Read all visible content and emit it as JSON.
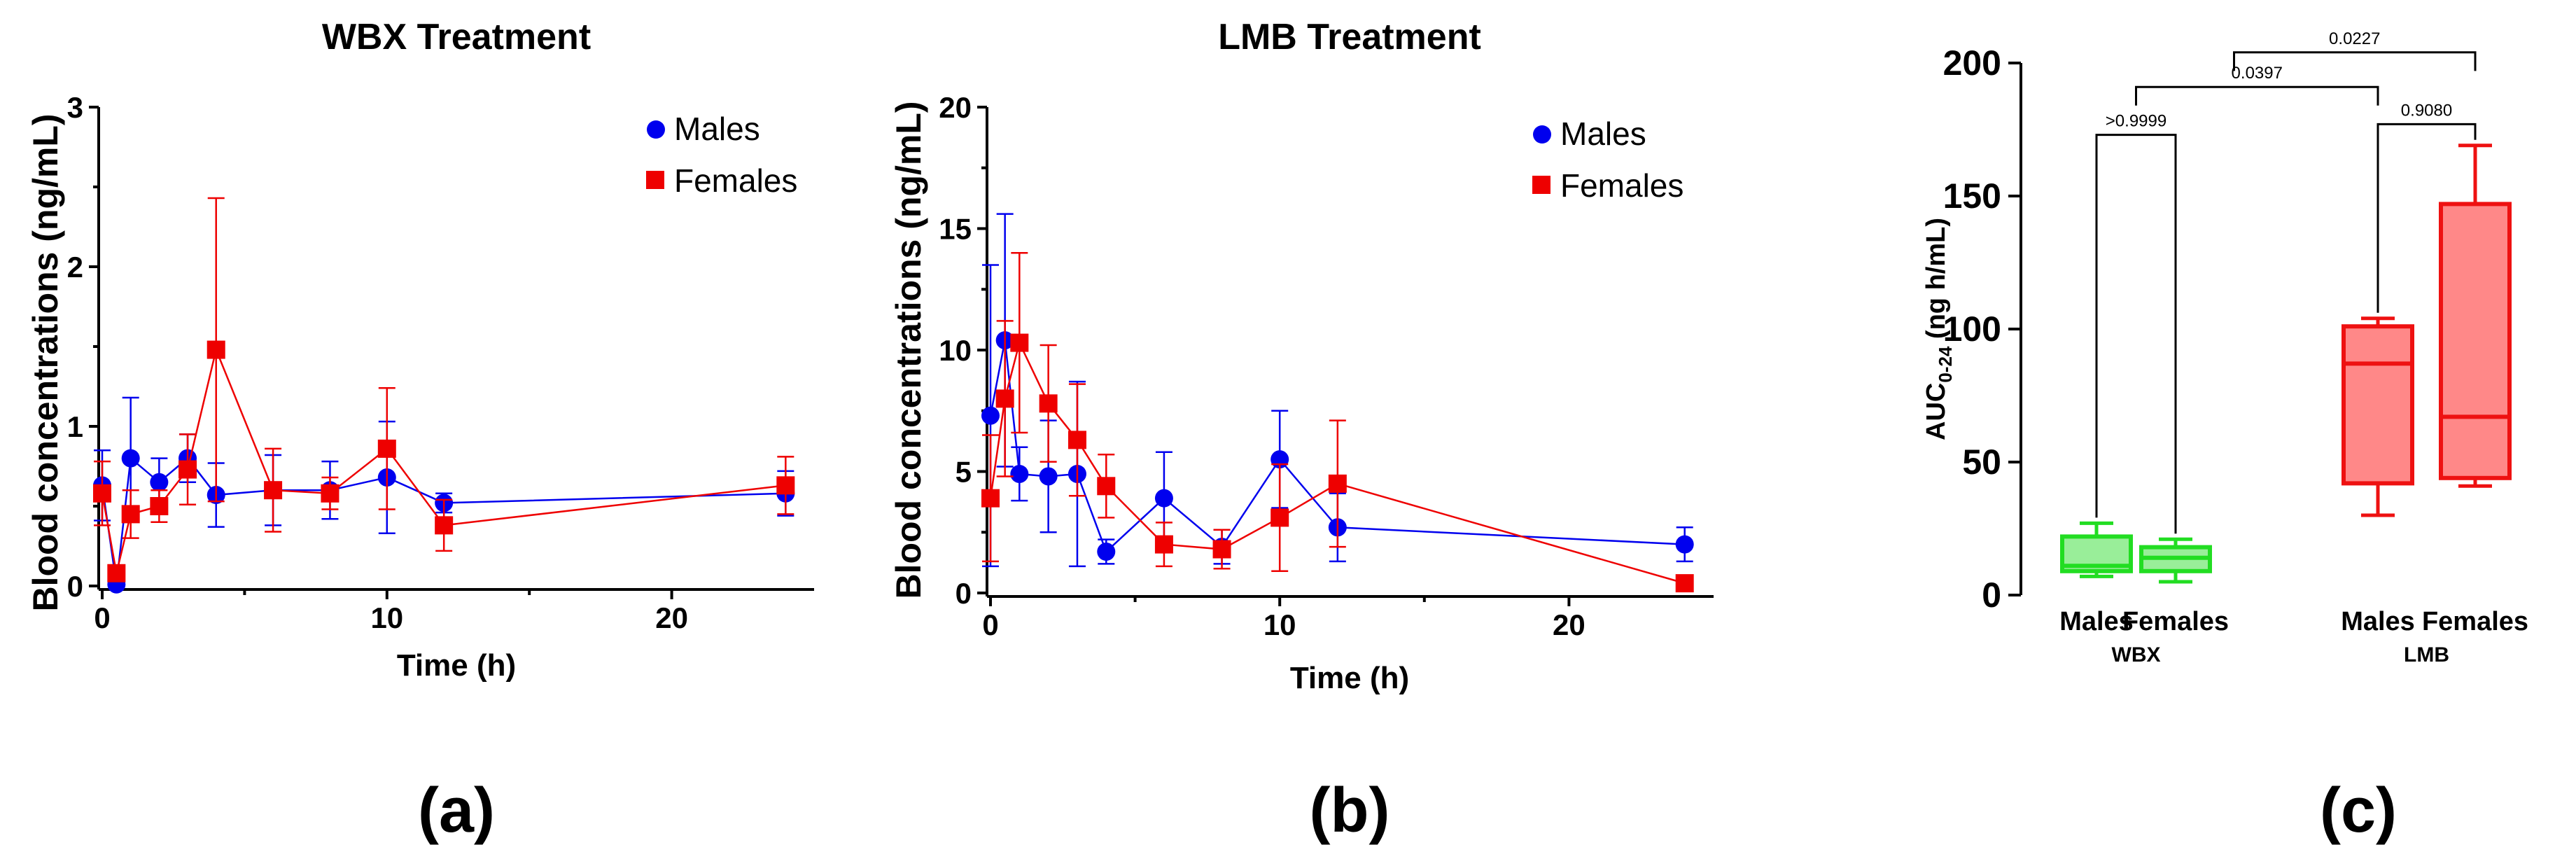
{
  "chart_data": [
    {
      "type": "line",
      "panel_label": "(a)",
      "title": "WBX Treatment",
      "xlabel": "Time (h)",
      "ylabel": "Blood concentrations (ng/mL)",
      "xlim": [
        0,
        25
      ],
      "ylim": [
        0,
        3
      ],
      "xticks": [
        0,
        10,
        20
      ],
      "yticks": [
        0,
        1,
        2,
        3
      ],
      "xtick_labels": [
        "0",
        "10",
        "20"
      ],
      "ytick_labels": [
        "0",
        "1",
        "2",
        "3"
      ],
      "legend_position": "top-right",
      "series": [
        {
          "name": "Males",
          "color": "#0000ee",
          "marker": "circle",
          "x": [
            0,
            0.5,
            1,
            2,
            3,
            4,
            6,
            8,
            10,
            12,
            24
          ],
          "y": [
            0.63,
            0.01,
            0.8,
            0.65,
            0.8,
            0.57,
            0.6,
            0.6,
            0.68,
            0.52,
            0.58
          ],
          "err": [
            0.22,
            0.03,
            0.38,
            0.15,
            0.15,
            0.2,
            0.22,
            0.18,
            0.35,
            0.06,
            0.14
          ]
        },
        {
          "name": "Females",
          "color": "#ee0000",
          "marker": "square",
          "x": [
            0,
            0.5,
            1,
            2,
            3,
            4,
            6,
            8,
            10,
            12,
            24
          ],
          "y": [
            0.58,
            0.08,
            0.45,
            0.5,
            0.73,
            1.48,
            0.6,
            0.58,
            0.86,
            0.38,
            0.63
          ],
          "err": [
            0.2,
            0.05,
            0.15,
            0.1,
            0.22,
            0.95,
            0.26,
            0.1,
            0.38,
            0.16,
            0.18
          ]
        }
      ]
    },
    {
      "type": "line",
      "panel_label": "(b)",
      "title": "LMB Treatment",
      "xlabel": "Time (h)",
      "ylabel": "Blood concentrations (ng/mL)",
      "xlim": [
        0,
        25
      ],
      "ylim": [
        0,
        20
      ],
      "xticks": [
        0,
        10,
        20
      ],
      "yticks": [
        0,
        5,
        10,
        15,
        20
      ],
      "xtick_labels": [
        "0",
        "10",
        "20"
      ],
      "ytick_labels": [
        "0",
        "5",
        "10",
        "15",
        "20"
      ],
      "legend_position": "top-right",
      "series": [
        {
          "name": "Males",
          "color": "#0000ee",
          "marker": "circle",
          "x": [
            0,
            0.5,
            1,
            2,
            3,
            4,
            6,
            8,
            10,
            12,
            24
          ],
          "y": [
            7.3,
            10.4,
            4.9,
            4.8,
            4.9,
            1.7,
            3.9,
            1.9,
            5.5,
            2.7,
            2.0
          ],
          "err": [
            6.2,
            5.2,
            1.1,
            2.3,
            3.8,
            0.5,
            1.9,
            0.7,
            2.0,
            1.4,
            0.7
          ]
        },
        {
          "name": "Females",
          "color": "#ee0000",
          "marker": "square",
          "x": [
            0,
            0.5,
            1,
            2,
            3,
            4,
            6,
            8,
            10,
            12,
            24
          ],
          "y": [
            3.9,
            8.0,
            10.3,
            7.8,
            6.3,
            4.4,
            2.0,
            1.8,
            3.1,
            4.5,
            0.4
          ],
          "err": [
            2.6,
            3.2,
            3.7,
            2.4,
            2.3,
            1.3,
            0.9,
            0.8,
            2.2,
            2.6,
            0.2
          ]
        }
      ]
    },
    {
      "type": "box",
      "panel_label": "(c)",
      "title": "",
      "ylabel_main": "AUC",
      "ylabel_sub": "0-24",
      "ylabel_rest": " (ng h/mL)",
      "ylim": [
        0,
        200
      ],
      "yticks": [
        0,
        50,
        100,
        150,
        200
      ],
      "ytick_labels": [
        "0",
        "50",
        "100",
        "150",
        "200"
      ],
      "groups": [
        {
          "name": "WBX",
          "members": [
            0,
            1
          ]
        },
        {
          "name": "LMB",
          "members": [
            2,
            3
          ]
        }
      ],
      "boxes": [
        {
          "label": "Males",
          "group": "WBX",
          "min": 7,
          "q1": 9,
          "median": 11,
          "q3": 22,
          "max": 27,
          "color": "#22dd22"
        },
        {
          "label": "Females",
          "group": "WBX",
          "min": 5,
          "q1": 9,
          "median": 14,
          "q3": 18,
          "max": 21,
          "color": "#22dd22"
        },
        {
          "label": "Males",
          "group": "LMB",
          "min": 30,
          "q1": 42,
          "median": 87,
          "q3": 101,
          "max": 104,
          "color": "#ee1111"
        },
        {
          "label": "Females",
          "group": "LMB",
          "min": 41,
          "q1": 44,
          "median": 67,
          "q3": 147,
          "max": 169,
          "color": "#ee1111"
        }
      ],
      "significance": [
        {
          "from": 0,
          "to": 1,
          "label": ">0.9999",
          "level": 173
        },
        {
          "from": 2,
          "to": 3,
          "label": "0.9080",
          "level": 177
        },
        {
          "from": "WBX",
          "to": 2,
          "label": "0.0397",
          "level": 191
        },
        {
          "from": "WBX_MID",
          "to": 3,
          "label": "0.0227",
          "level": 204
        }
      ]
    }
  ]
}
